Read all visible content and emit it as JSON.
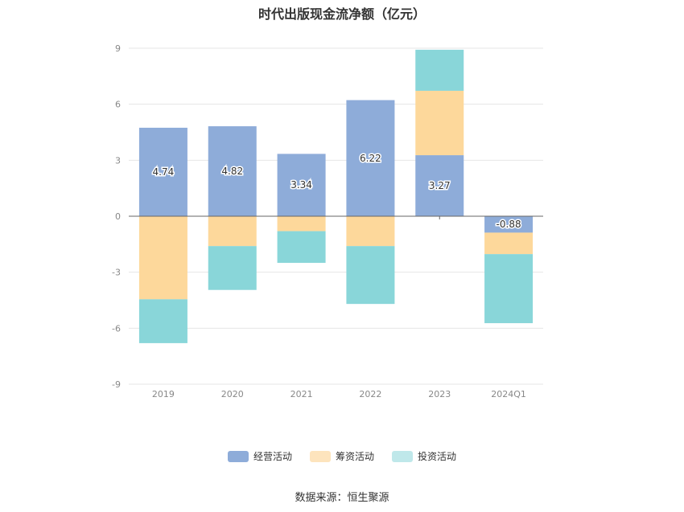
{
  "chart_data": {
    "type": "bar",
    "stacked": true,
    "title": "时代出版现金流净额（亿元）",
    "categories": [
      "2019",
      "2020",
      "2021",
      "2022",
      "2023",
      "2024Q1"
    ],
    "series": [
      {
        "name": "经营活动",
        "color": "#8eacd9",
        "values": [
          4.74,
          4.82,
          3.34,
          6.22,
          3.27,
          -0.88
        ]
      },
      {
        "name": "筹资活动",
        "color": "#fdd89b",
        "values": [
          -4.45,
          -1.6,
          -0.8,
          -1.6,
          3.45,
          -1.15
        ]
      },
      {
        "name": "投资活动",
        "color": "#89d6d9",
        "values": [
          -2.35,
          -2.35,
          -1.7,
          -3.1,
          2.2,
          -3.7
        ]
      }
    ],
    "data_labels": [
      "4.74",
      "4.82",
      "3.34",
      "6.22",
      "3.27",
      "-0.88"
    ],
    "ylim": [
      -9,
      9
    ],
    "yticks": [
      "9",
      "6",
      "3",
      "0",
      "-3",
      "-6",
      "-9"
    ],
    "grid": true,
    "legend_position": "bottom",
    "legend_colors": [
      "#8eacd9",
      "#fde4bd",
      "#bfe8ea"
    ]
  },
  "source_text": "数据来源：恒生聚源"
}
